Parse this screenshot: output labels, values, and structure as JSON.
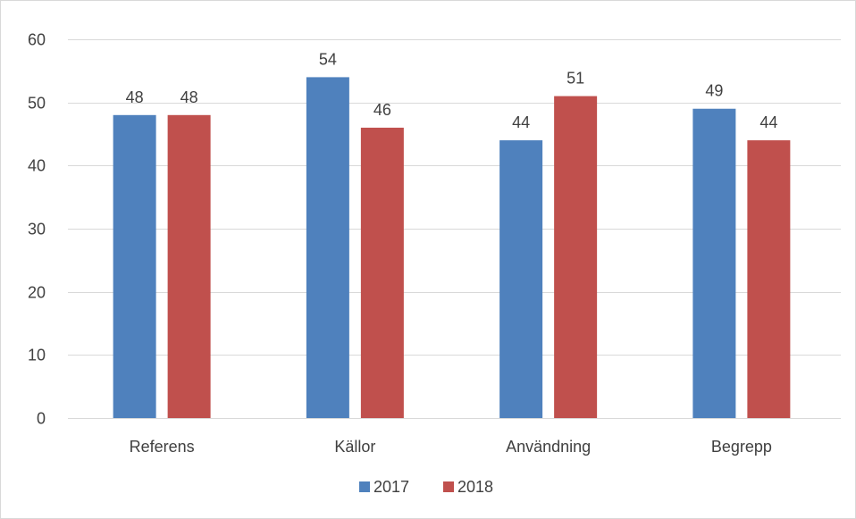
{
  "chart_data": {
    "type": "bar",
    "title": "",
    "xlabel": "",
    "ylabel": "",
    "categories": [
      "Referens",
      "Källor",
      "Användning",
      "Begrepp"
    ],
    "series": [
      {
        "name": "2017",
        "values": [
          48,
          54,
          44,
          49
        ],
        "color": "#4f81bd"
      },
      {
        "name": "2018",
        "values": [
          48,
          46,
          51,
          44
        ],
        "color": "#c0504d"
      }
    ],
    "ylim": [
      0,
      60
    ],
    "yticks": [
      0,
      10,
      20,
      30,
      40,
      50,
      60
    ],
    "grid": true,
    "data_labels": true,
    "legend": "bottom"
  }
}
